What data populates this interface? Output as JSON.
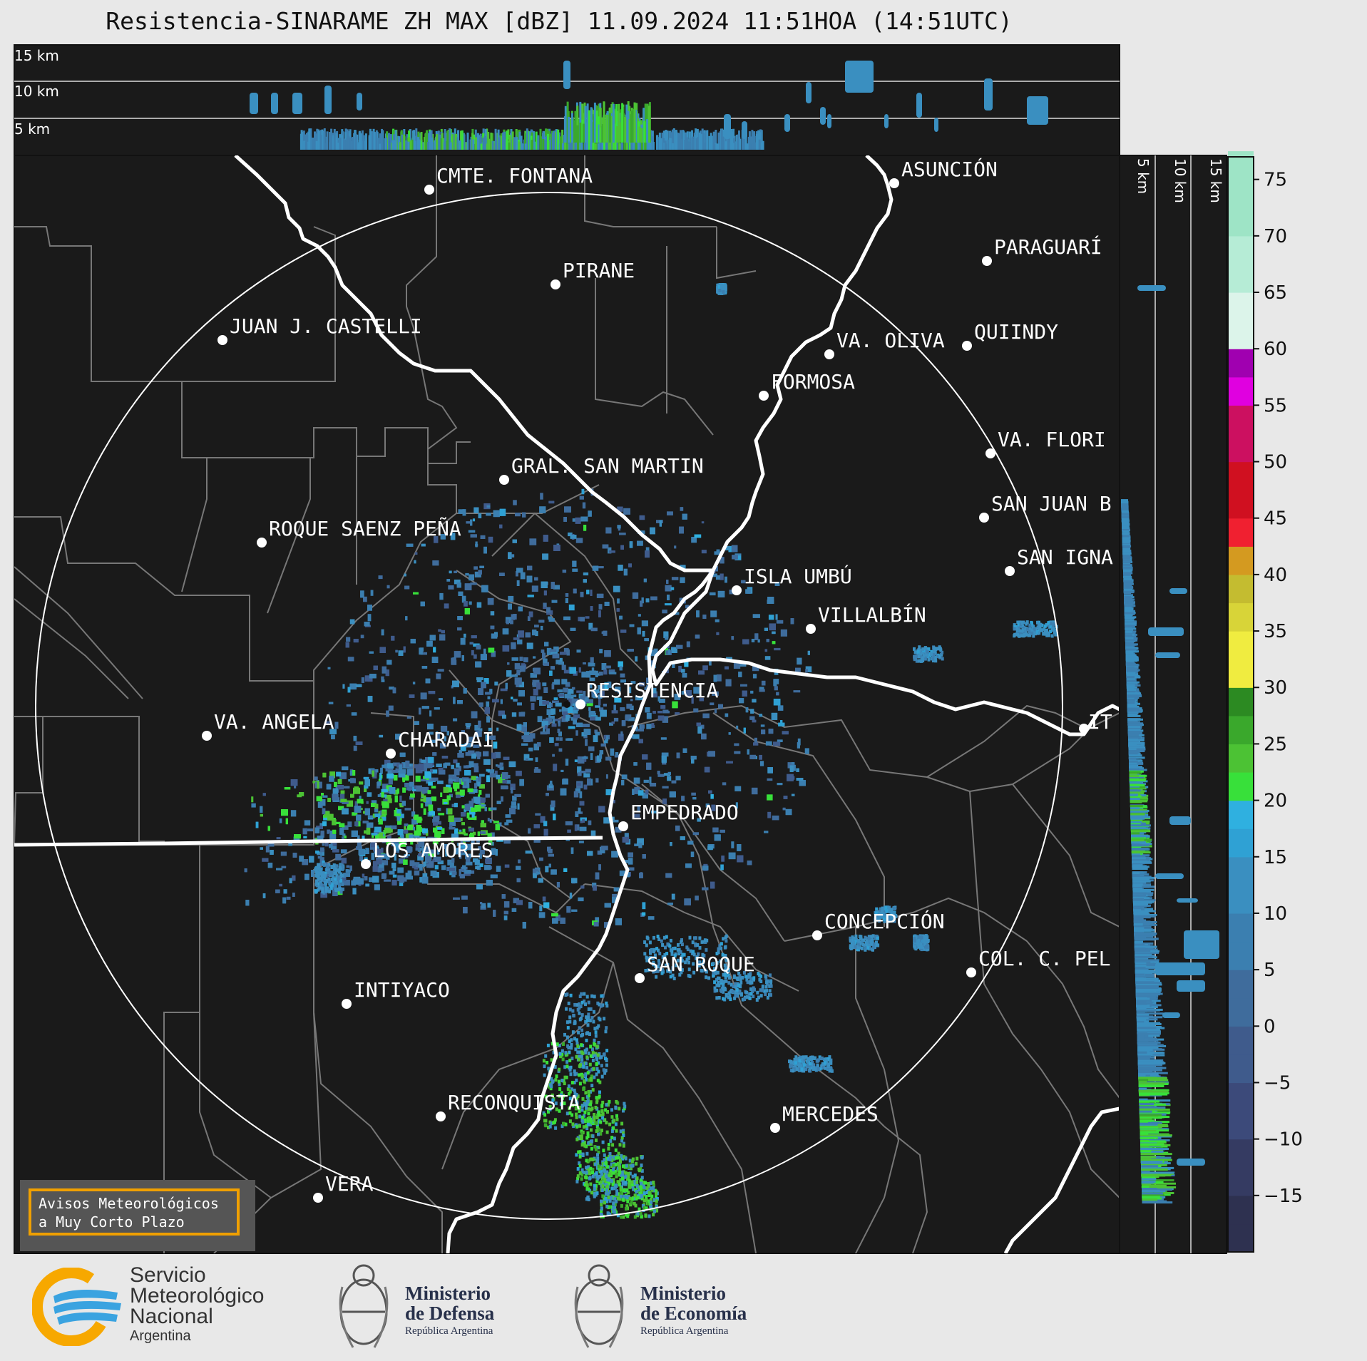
{
  "title": "Resistencia-SINARAME ZH MAX [dBZ] 11.09.2024 11:51HOA (14:51UTC)",
  "top_profile": {
    "levels": [
      "15 km",
      "10 km",
      "5 km"
    ]
  },
  "side_profile": {
    "levels": [
      "5 km",
      "10 km",
      "15 km"
    ]
  },
  "colorbar": {
    "ticks": [
      "75",
      "70",
      "65",
      "60",
      "55",
      "50",
      "45",
      "40",
      "35",
      "30",
      "25",
      "20",
      "15",
      "10",
      "5",
      "0",
      "−5",
      "−10",
      "−15"
    ],
    "range": [
      -20,
      77
    ]
  },
  "cities": [
    {
      "name": "CMTE. FONTANA"
    },
    {
      "name": "ASUNCIÓN"
    },
    {
      "name": "PARAGUARÍ"
    },
    {
      "name": "PIRANE"
    },
    {
      "name": "JUAN J. CASTELLI"
    },
    {
      "name": "VA. OLIVA"
    },
    {
      "name": "QUIINDY"
    },
    {
      "name": "FORMOSA"
    },
    {
      "name": "VA. FLORI"
    },
    {
      "name": "GRAL. SAN MARTIN"
    },
    {
      "name": "SAN JUAN B"
    },
    {
      "name": "ROQUE SAENZ PEÑA"
    },
    {
      "name": "SAN IGNA"
    },
    {
      "name": "ISLA UMBÚ"
    },
    {
      "name": "VILLALBÍN"
    },
    {
      "name": "RESISTENCIA"
    },
    {
      "name": "VA. ANGELA"
    },
    {
      "name": "CHARADAI"
    },
    {
      "name": "IT"
    },
    {
      "name": "EMPEDRADO"
    },
    {
      "name": "LOS AMORES"
    },
    {
      "name": "CONCEPCIÓN"
    },
    {
      "name": "SAN ROQUE"
    },
    {
      "name": "COL. C. PEL"
    },
    {
      "name": "INTIYACO"
    },
    {
      "name": "RECONQUISTA"
    },
    {
      "name": "MERCEDES"
    },
    {
      "name": "VERA"
    }
  ],
  "warning_box": {
    "line1": "Avisos Meteorológicos",
    "line2": "a Muy Corto Plazo"
  },
  "logos": {
    "smn": {
      "line1": "Servicio",
      "line2": "Meteorológico",
      "line3": "Nacional",
      "line4": "Argentina"
    },
    "defensa": {
      "line1": "Ministerio",
      "line2": "de Defensa",
      "line3": "República Argentina"
    },
    "economia": {
      "line1": "Ministerio",
      "line2": "de Economía",
      "line3": "República Argentina"
    }
  }
}
